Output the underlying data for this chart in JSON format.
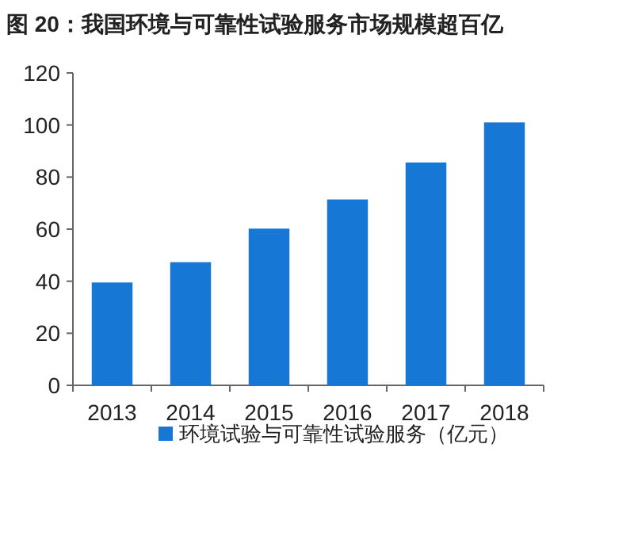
{
  "chart_data": {
    "type": "bar",
    "title": "图 20：我国环境与可靠性试验服务市场规模超百亿",
    "categories": [
      "2013",
      "2014",
      "2015",
      "2016",
      "2017",
      "2018"
    ],
    "series": [
      {
        "name": "环境试验与可靠性试验服务（亿元）",
        "color": "#1777d4",
        "values": [
          39.5,
          47.3,
          60.2,
          71.4,
          85.6,
          101
        ]
      }
    ],
    "ylim": [
      0,
      120
    ],
    "yticks": [
      0,
      20,
      40,
      60,
      80,
      100,
      120
    ],
    "grid": false,
    "legend": "bottom"
  }
}
